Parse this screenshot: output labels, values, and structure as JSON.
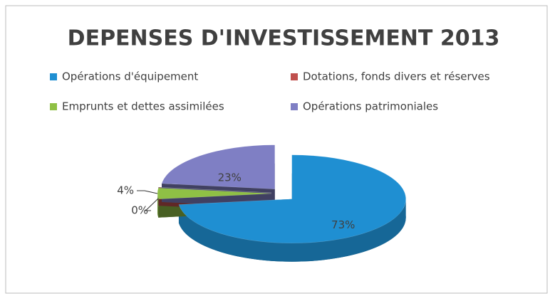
{
  "chart_data": {
    "type": "pie3d",
    "title": "DEPENSES D'INVESTISSEMENT 2013",
    "categories": [
      "Opérations d'équipement",
      "Dotations, fonds divers et réserves",
      "Emprunts et dettes assimilées",
      "Opérations patrimoniales"
    ],
    "values": [
      73,
      0,
      4,
      23
    ],
    "value_labels": [
      "73%",
      "0%",
      "4%",
      "23%"
    ],
    "colors": [
      "#1f8fd2",
      "#c0504d",
      "#8fc045",
      "#7f7fc4"
    ]
  }
}
